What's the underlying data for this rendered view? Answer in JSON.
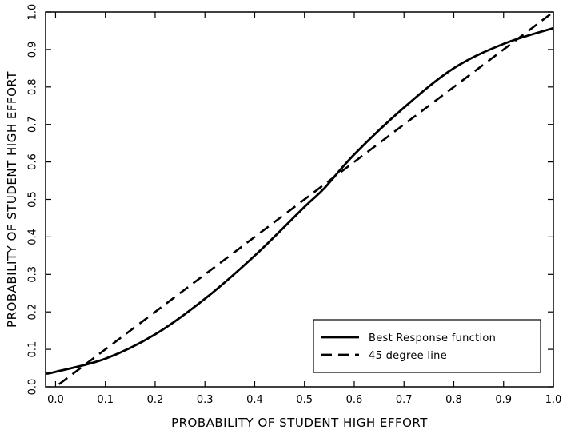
{
  "chart_data": {
    "type": "line",
    "title": "",
    "xlabel": "PROBABILITY OF STUDENT HIGH EFFORT",
    "ylabel": "PROBABILITY OF STUDENT HIGH EFFORT",
    "xlim": [
      -0.02,
      1.0
    ],
    "ylim": [
      0.0,
      1.0
    ],
    "xticks": [
      "0.0",
      "0.1",
      "0.2",
      "0.3",
      "0.4",
      "0.5",
      "0.6",
      "0.7",
      "0.8",
      "0.9",
      "1.0"
    ],
    "yticks": [
      "0.0",
      "0.1",
      "0.2",
      "0.3",
      "0.4",
      "0.5",
      "0.6",
      "0.7",
      "0.8",
      "0.9",
      "1.0"
    ],
    "grid": false,
    "legend_position": "bottom-right",
    "series": [
      {
        "name": "Best Response function",
        "style": "solid",
        "color": "#000000",
        "x": [
          -0.02,
          0.0,
          0.1,
          0.2,
          0.3,
          0.4,
          0.5,
          0.54,
          0.6,
          0.7,
          0.8,
          0.9,
          1.0
        ],
        "y": [
          0.035,
          0.04,
          0.075,
          0.14,
          0.235,
          0.35,
          0.48,
          0.53,
          0.62,
          0.745,
          0.85,
          0.915,
          0.957
        ]
      },
      {
        "name": "45 degree line",
        "style": "dashed",
        "color": "#000000",
        "x": [
          -0.02,
          1.0
        ],
        "y": [
          -0.02,
          1.0
        ]
      }
    ]
  }
}
